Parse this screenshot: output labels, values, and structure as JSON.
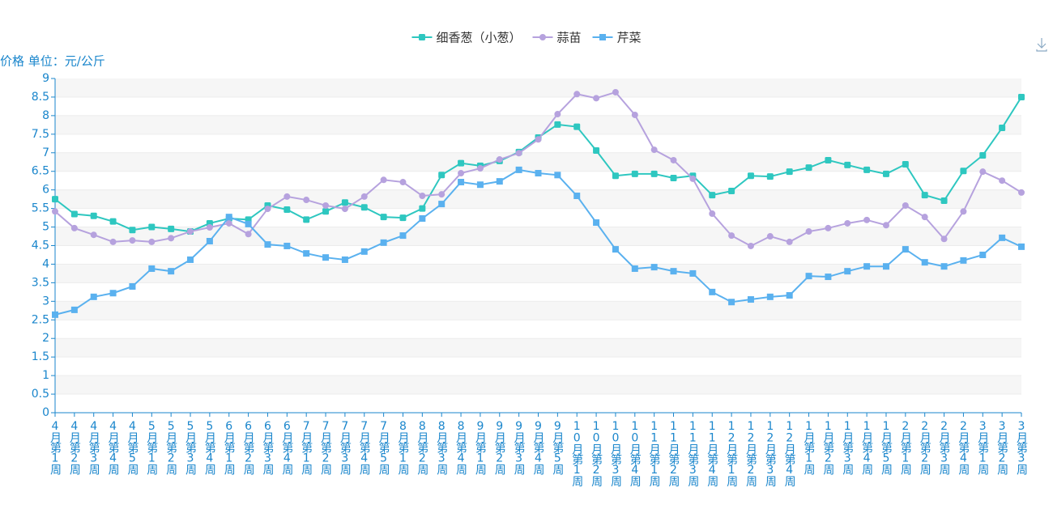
{
  "chart_data": {
    "type": "line",
    "y_axis_label": "价格 单位：元/公斤",
    "categories": [
      "4月第1周",
      "4月第2周",
      "4月第3周",
      "4月第4周",
      "4月第5周",
      "5月第1周",
      "5月第2周",
      "5月第3周",
      "5月第4周",
      "6月第1周",
      "6月第2周",
      "6月第3周",
      "6月第4周",
      "7月第1周",
      "7月第2周",
      "7月第3周",
      "7月第4周",
      "7月第5周",
      "8月第1周",
      "8月第2周",
      "8月第3周",
      "8月第4周",
      "9月第1周",
      "9月第2周",
      "9月第3周",
      "9月第4周",
      "9月第5周",
      "10月第1周",
      "10月第2周",
      "10月第3周",
      "10月第4周",
      "11月第1周",
      "11月第2周",
      "11月第3周",
      "11月第4周",
      "12月第1周",
      "12月第2周",
      "12月第3周",
      "12月第4周",
      "1月第1周",
      "1月第2周",
      "1月第3周",
      "1月第4周",
      "1月第5周",
      "2月第1周",
      "2月第2周",
      "2月第3周",
      "2月第4周",
      "3月第1周",
      "3月第2周",
      "3月第3周"
    ],
    "series": [
      {
        "name": "细香葱（小葱）",
        "color": "#2ec7c0",
        "marker": "roundRect",
        "values": [
          5.75,
          5.35,
          5.3,
          5.15,
          4.92,
          5.0,
          4.95,
          4.88,
          5.1,
          5.23,
          5.2,
          5.58,
          5.47,
          5.2,
          5.42,
          5.66,
          5.53,
          5.27,
          5.25,
          5.5,
          6.4,
          6.72,
          6.65,
          6.78,
          7.02,
          7.41,
          7.76,
          7.7,
          7.06,
          6.38,
          6.43,
          6.43,
          6.32,
          6.38,
          5.86,
          5.97,
          6.38,
          6.36,
          6.49,
          6.6,
          6.8,
          6.67,
          6.54,
          6.43,
          6.69,
          5.86,
          5.71,
          6.51,
          6.93,
          7.67,
          8.5
        ]
      },
      {
        "name": "蒜苗",
        "color": "#b6a2de",
        "marker": "circle",
        "values": [
          5.42,
          4.97,
          4.79,
          4.6,
          4.64,
          4.6,
          4.7,
          4.88,
          4.99,
          5.1,
          4.81,
          5.49,
          5.82,
          5.73,
          5.58,
          5.49,
          5.82,
          6.27,
          6.21,
          5.84,
          5.88,
          6.45,
          6.58,
          6.82,
          6.99,
          7.36,
          8.04,
          8.58,
          8.47,
          8.63,
          8.02,
          7.08,
          6.8,
          6.3,
          5.36,
          4.77,
          4.49,
          4.75,
          4.6,
          4.88,
          4.97,
          5.1,
          5.19,
          5.05,
          5.58,
          5.27,
          4.68,
          5.42,
          6.49,
          6.25,
          5.93
        ]
      },
      {
        "name": "芹菜",
        "color": "#5ab1ef",
        "marker": "rect",
        "values": [
          2.64,
          2.77,
          3.12,
          3.22,
          3.4,
          3.88,
          3.81,
          4.12,
          4.62,
          5.27,
          5.08,
          4.53,
          4.49,
          4.29,
          4.18,
          4.12,
          4.34,
          4.58,
          4.77,
          5.23,
          5.62,
          6.21,
          6.14,
          6.23,
          6.54,
          6.45,
          6.4,
          5.84,
          5.12,
          4.4,
          3.88,
          3.92,
          3.81,
          3.75,
          3.25,
          2.98,
          3.05,
          3.12,
          3.16,
          3.68,
          3.66,
          3.81,
          3.94,
          3.94,
          4.4,
          4.05,
          3.94,
          4.1,
          4.25,
          4.71,
          4.47
        ]
      }
    ],
    "ylim": [
      0,
      9
    ],
    "yticks": [
      0,
      0.5,
      1,
      1.5,
      2,
      2.5,
      3,
      3.5,
      4,
      4.5,
      5,
      5.5,
      6,
      6.5,
      7,
      7.5,
      8,
      8.5,
      9
    ],
    "grid": true,
    "legend": "top",
    "axis_color": "#1a86cc"
  }
}
